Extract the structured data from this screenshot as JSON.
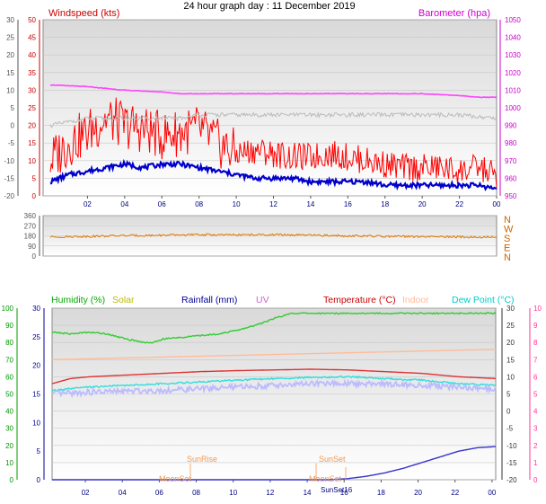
{
  "title": "24 hour graph day : 11 December 2019",
  "chart_data": [
    {
      "type": "line",
      "panel": "wind-pressure",
      "x_ticks": [
        "02",
        "04",
        "06",
        "08",
        "10",
        "12",
        "14",
        "16",
        "18",
        "20",
        "22",
        "00"
      ],
      "left_axis": {
        "label": "Windspeed (kts)",
        "ticks": [
          "50",
          "45",
          "40",
          "35",
          "30",
          "25",
          "20",
          "15",
          "10",
          "5",
          "0"
        ],
        "ylim": [
          0,
          50
        ],
        "color": "#cc0000"
      },
      "far_left_axis": {
        "ticks": [
          "30",
          "25",
          "20",
          "15",
          "10",
          "5",
          "0",
          "-5",
          "-10",
          "-15",
          "-20"
        ],
        "color": "#333333"
      },
      "right_axis": {
        "label": "Barometer (hpa)",
        "ticks": [
          "1050",
          "1040",
          "1030",
          "1020",
          "1010",
          "1000",
          "990",
          "980",
          "970",
          "960",
          "950"
        ],
        "ylim": [
          950,
          1050
        ],
        "color": "#cc00cc"
      },
      "series": [
        {
          "key": "gust",
          "color": "#ff0000",
          "axis": "left",
          "x": [
            0,
            1,
            2,
            3,
            4,
            5,
            6,
            7,
            8,
            9,
            10,
            11,
            12,
            13,
            14,
            15,
            16,
            17,
            18,
            19,
            20,
            21,
            22,
            23,
            24
          ],
          "y": [
            10,
            15,
            18,
            22,
            20,
            19,
            17,
            18,
            19,
            15,
            12,
            13,
            12,
            11,
            11,
            12,
            11,
            10,
            9,
            8,
            8,
            8,
            7,
            8,
            6
          ]
        },
        {
          "key": "wind_speed",
          "color": "#0000cc",
          "axis": "left",
          "x": [
            0,
            1,
            2,
            3,
            4,
            5,
            6,
            7,
            8,
            9,
            10,
            11,
            12,
            13,
            14,
            15,
            16,
            17,
            18,
            19,
            20,
            21,
            22,
            23,
            24
          ],
          "y": [
            4,
            6,
            7,
            8,
            9,
            8,
            9,
            9,
            8,
            7,
            6,
            5,
            5,
            5,
            4,
            4,
            4,
            4,
            3,
            3,
            3,
            3,
            3,
            3,
            2
          ]
        },
        {
          "key": "pressure",
          "color": "#ff44ff",
          "axis": "right",
          "x": [
            0,
            2,
            4,
            6,
            7,
            8,
            10,
            12,
            16,
            20,
            22,
            23,
            24
          ],
          "y": [
            1013,
            1012,
            1010,
            1009,
            1008,
            1008,
            1008,
            1008,
            1008,
            1008,
            1007,
            1006,
            1006
          ]
        },
        {
          "key": "gray",
          "color": "#bbbbbb",
          "axis": "far_left",
          "x": [
            0,
            1,
            2,
            3,
            4,
            5,
            6,
            7,
            8,
            9,
            10,
            12,
            14,
            16,
            18,
            20,
            22,
            24
          ],
          "y": [
            0,
            1,
            2,
            2,
            2,
            2,
            2,
            2,
            3,
            3,
            3,
            3,
            3,
            3,
            3,
            3,
            3,
            2
          ]
        }
      ]
    },
    {
      "type": "line",
      "panel": "wind-direction",
      "left_axis": {
        "ticks": [
          "360",
          "270",
          "180",
          "90",
          "0"
        ],
        "ylim": [
          0,
          360
        ]
      },
      "right_axis": {
        "ticks": [
          "N",
          "W",
          "S",
          "E",
          "N"
        ]
      },
      "series": [
        {
          "key": "direction",
          "color": "#dd7700",
          "x": [
            0,
            2,
            4,
            6,
            8,
            10,
            12,
            14,
            16,
            18,
            20,
            22,
            24
          ],
          "y": [
            170,
            175,
            182,
            185,
            190,
            188,
            190,
            185,
            180,
            175,
            172,
            170,
            168
          ]
        }
      ]
    },
    {
      "type": "line",
      "panel": "climate",
      "x_ticks": [
        "02",
        "04",
        "06",
        "08",
        "10",
        "12",
        "14",
        "16",
        "18",
        "20",
        "22",
        "00"
      ],
      "legend": [
        {
          "label": "Humidity  (%)",
          "color": "#00aa00"
        },
        {
          "label": "Solar",
          "color": "#bbbb00"
        },
        {
          "label": "Rainfall (mm)",
          "color": "#000099"
        },
        {
          "label": "UV",
          "color": "#cc66cc"
        },
        {
          "label": "Temperature (°C)",
          "color": "#cc0000"
        },
        {
          "label": "Indoor",
          "color": "#ffbb99"
        },
        {
          "label": "Dew Point (°C)",
          "color": "#00cccc"
        }
      ],
      "humidity_axis": {
        "ticks": [
          "100",
          "90",
          "80",
          "70",
          "60",
          "50",
          "40",
          "30",
          "20",
          "10",
          "0"
        ],
        "ylim": [
          0,
          100
        ],
        "color": "#009900"
      },
      "rain_axis": {
        "ticks": [
          "30",
          "25",
          "20",
          "15",
          "10",
          "5",
          "0"
        ],
        "ylim": [
          0,
          30
        ],
        "color": "#000099"
      },
      "temp_axis": {
        "ticks": [
          "30",
          "25",
          "20",
          "15",
          "10",
          "5",
          "0",
          "-5",
          "-10",
          "-15",
          "-20"
        ],
        "ylim": [
          -20,
          30
        ],
        "color": "#333333"
      },
      "uv_axis": {
        "ticks": [
          "10",
          "9",
          "8",
          "7",
          "6",
          "5",
          "4",
          "3",
          "2",
          "1",
          "0"
        ],
        "ylim": [
          0,
          10
        ],
        "color": "#ff3399"
      },
      "annotations": [
        "SunRise",
        "SunSet",
        "MoonSet",
        "MoonSet",
        "SunSet16"
      ],
      "series": [
        {
          "key": "humidity",
          "color": "#33cc33",
          "axis": "humidity",
          "x": [
            0,
            1,
            2,
            3,
            4,
            5,
            5.5,
            6,
            7,
            8,
            9,
            10,
            11,
            12,
            13,
            14,
            16,
            18,
            20,
            22,
            24
          ],
          "y": [
            86,
            85,
            86,
            85,
            82,
            80,
            80,
            82,
            83,
            84,
            85,
            87,
            90,
            94,
            97,
            97,
            97,
            97,
            97,
            97,
            97
          ]
        },
        {
          "key": "indoor",
          "color": "#ffbb99",
          "axis": "temp",
          "x": [
            0,
            4,
            8,
            12,
            16,
            20,
            24
          ],
          "y": [
            15,
            15.5,
            16,
            16.5,
            17,
            17.5,
            18
          ]
        },
        {
          "key": "temperature",
          "color": "#dd3333",
          "axis": "temp",
          "x": [
            0,
            1,
            2,
            4,
            6,
            8,
            10,
            12,
            14,
            16,
            18,
            20,
            22,
            24
          ],
          "y": [
            8,
            9.5,
            10,
            10.5,
            11,
            11.5,
            11.8,
            12,
            12.2,
            12,
            11.5,
            11,
            10,
            9.5
          ]
        },
        {
          "key": "dew_point",
          "color": "#33dddd",
          "axis": "temp",
          "x": [
            0,
            2,
            4,
            6,
            8,
            10,
            12,
            14,
            16,
            18,
            20,
            22,
            24
          ],
          "y": [
            6,
            7,
            7.5,
            8,
            8.5,
            9,
            9.5,
            9.8,
            10,
            9.5,
            9,
            8,
            7.5
          ]
        },
        {
          "key": "uv",
          "color": "#bbbbff",
          "axis": "temp",
          "x": [
            0,
            2,
            4,
            6,
            8,
            10,
            12,
            14,
            16,
            18,
            20,
            22,
            24
          ],
          "y": [
            5,
            5.5,
            5.8,
            6,
            6.5,
            7,
            7.5,
            8,
            8,
            8,
            7.5,
            7,
            6.5
          ]
        },
        {
          "key": "rainfall",
          "color": "#3333cc",
          "axis": "rain",
          "x": [
            0,
            10,
            11,
            12,
            13,
            14,
            15,
            16,
            17,
            18,
            19,
            20,
            21,
            22,
            23,
            24
          ],
          "y": [
            0,
            0,
            0,
            0,
            0,
            0,
            0,
            0.2,
            0.6,
            1.2,
            2,
            3,
            4,
            5,
            5.6,
            5.8
          ]
        }
      ]
    }
  ]
}
